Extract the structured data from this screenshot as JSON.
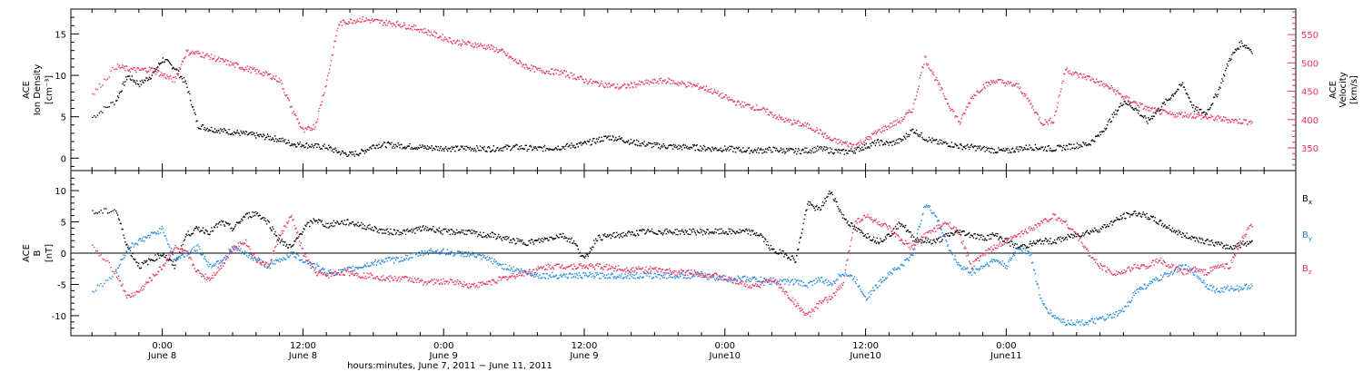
{
  "chart_data": [
    {
      "type": "scatter",
      "panel": "top",
      "ylabel_left": [
        "ACE",
        "Ion Density",
        "[cm⁻³]"
      ],
      "ylabel_right": [
        "ACE",
        "Velocity",
        "[km/s]"
      ],
      "left_axis": {
        "ylim": [
          -1.5,
          18
        ],
        "ticks": [
          0,
          5,
          10,
          15
        ]
      },
      "right_axis": {
        "ylim": [
          310,
          595
        ],
        "ticks": [
          350,
          400,
          450,
          500,
          550
        ]
      },
      "series": [
        {
          "key": "density",
          "axis": "left",
          "color": "#000000",
          "x": [
            -6,
            -4,
            -3,
            -2,
            -1,
            0,
            1,
            2,
            3,
            4,
            5,
            6,
            7,
            8,
            9,
            10,
            11,
            12,
            13,
            14,
            15,
            16,
            17,
            18,
            19,
            20,
            21,
            22,
            23,
            24,
            25,
            26,
            27,
            28,
            29,
            30,
            31,
            32,
            33,
            34,
            35,
            36,
            37,
            38,
            39,
            40,
            41,
            42,
            43,
            44,
            45,
            46,
            47,
            48,
            49,
            50,
            51,
            52,
            53,
            54,
            55,
            56,
            57,
            58,
            59,
            60,
            61,
            62,
            63,
            64,
            65,
            66,
            67,
            68,
            69,
            70,
            71,
            72,
            73,
            74,
            75,
            76,
            77,
            78,
            79,
            80,
            81,
            82,
            83,
            84,
            85,
            86,
            87,
            88,
            89,
            90,
            91,
            92,
            93
          ],
          "y": [
            5,
            7,
            10,
            9,
            10,
            12,
            11,
            9,
            4,
            3.6,
            3.4,
            3.2,
            3.0,
            2.8,
            2.6,
            2.3,
            1.8,
            1.7,
            1.5,
            1.4,
            0.8,
            0.5,
            0.8,
            1.6,
            1.7,
            1.6,
            1.5,
            1.4,
            1.3,
            1.3,
            1.2,
            1.3,
            1.2,
            1.2,
            1.3,
            1.4,
            1.3,
            1.2,
            1.3,
            1.4,
            1.6,
            1.8,
            2.2,
            2.6,
            2.4,
            2.0,
            1.8,
            1.6,
            1.5,
            1.4,
            1.4,
            1.3,
            1.2,
            1.2,
            1.1,
            1.0,
            1.0,
            1.1,
            1.0,
            0.9,
            1.0,
            1.2,
            1.0,
            0.8,
            1.0,
            1.5,
            2.0,
            1.8,
            2.2,
            3.5,
            2.5,
            2.0,
            1.8,
            1.5,
            1.4,
            1.2,
            1.0,
            0.9,
            1.2,
            1.4,
            1.3,
            1.2,
            1.4,
            1.6,
            1.8,
            3.0,
            5.0,
            7.0,
            6.0,
            4.5,
            6.0,
            7.5,
            9.0,
            6.0,
            5.5,
            8.0,
            12.0,
            14.0,
            13.0
          ]
        },
        {
          "key": "velocity",
          "axis": "right",
          "color": "#e8325c",
          "x": [
            -6,
            -4,
            -3,
            -2,
            -1,
            0,
            1,
            2,
            3,
            4,
            5,
            6,
            7,
            8,
            9,
            10,
            11,
            12,
            13,
            14,
            15,
            16,
            17,
            18,
            19,
            20,
            21,
            22,
            23,
            24,
            25,
            26,
            27,
            28,
            29,
            30,
            31,
            32,
            33,
            34,
            35,
            36,
            37,
            38,
            39,
            40,
            41,
            42,
            43,
            44,
            45,
            46,
            47,
            48,
            49,
            50,
            51,
            52,
            53,
            54,
            55,
            56,
            57,
            58,
            59,
            60,
            61,
            62,
            63,
            64,
            65,
            66,
            67,
            68,
            69,
            70,
            71,
            72,
            73,
            74,
            75,
            76,
            77,
            78,
            79,
            80,
            81,
            82,
            83,
            84,
            85,
            86,
            87,
            88,
            89,
            90,
            91,
            92,
            93
          ],
          "y": [
            445,
            495,
            490,
            488,
            490,
            480,
            470,
            520,
            518,
            512,
            505,
            498,
            492,
            486,
            480,
            470,
            420,
            380,
            390,
            470,
            570,
            575,
            578,
            575,
            572,
            570,
            565,
            560,
            552,
            545,
            538,
            535,
            532,
            528,
            520,
            505,
            495,
            488,
            486,
            484,
            478,
            470,
            465,
            462,
            458,
            462,
            465,
            468,
            470,
            465,
            462,
            458,
            450,
            440,
            430,
            425,
            420,
            410,
            400,
            395,
            390,
            380,
            365,
            360,
            355,
            365,
            380,
            390,
            400,
            420,
            510,
            470,
            430,
            395,
            440,
            460,
            470,
            465,
            460,
            430,
            395,
            400,
            490,
            480,
            475,
            465,
            455,
            440,
            430,
            420,
            415,
            410,
            410,
            408,
            405,
            403,
            400,
            398,
            397
          ]
        }
      ]
    },
    {
      "type": "scatter",
      "panel": "bottom",
      "ylabel": [
        "ACE",
        "B",
        "[nT]"
      ],
      "ylim": [
        -13.2,
        13.2
      ],
      "yticks": [
        -10,
        -5,
        0,
        5,
        10
      ],
      "zero_line": true,
      "series": [
        {
          "key": "bx",
          "name": "Bx",
          "color": "#000000",
          "x": [
            -6,
            -4,
            -3,
            -2,
            -1,
            0,
            1,
            2,
            3,
            4,
            5,
            6,
            7,
            8,
            9,
            10,
            11,
            12,
            13,
            14,
            15,
            16,
            17,
            18,
            19,
            20,
            21,
            22,
            23,
            24,
            25,
            26,
            27,
            28,
            29,
            30,
            31,
            32,
            33,
            34,
            35,
            36,
            37,
            38,
            39,
            40,
            41,
            42,
            43,
            44,
            45,
            46,
            47,
            48,
            49,
            50,
            51,
            52,
            53,
            54,
            55,
            56,
            57,
            58,
            59,
            60,
            61,
            62,
            63,
            64,
            65,
            66,
            67,
            68,
            69,
            70,
            71,
            72,
            73,
            74,
            75,
            76,
            77,
            78,
            79,
            80,
            81,
            82,
            83,
            84,
            85,
            86,
            87,
            88,
            89,
            90,
            91,
            92,
            93
          ],
          "y": [
            6.5,
            7,
            1,
            -2,
            -1,
            0,
            -2,
            3,
            4,
            3.5,
            5,
            4,
            6,
            6.5,
            5,
            2,
            1,
            4,
            5.5,
            4.5,
            5,
            5,
            4.5,
            4,
            3.5,
            3.5,
            3.5,
            4,
            4,
            3.5,
            3.5,
            3.5,
            3,
            3,
            2.5,
            2,
            1.8,
            2,
            2.5,
            3,
            2,
            -1,
            2.5,
            2.8,
            3,
            3.2,
            3.5,
            3.5,
            3.5,
            3.5,
            3.5,
            3.5,
            3.5,
            3.5,
            3.5,
            3.5,
            3,
            0.5,
            0,
            -1,
            8,
            7,
            10,
            6,
            4,
            3,
            2,
            3,
            5,
            2.5,
            2,
            2,
            3,
            3.5,
            3,
            2.5,
            3,
            2,
            1,
            1.5,
            2,
            2,
            2.5,
            3,
            3.5,
            4,
            5,
            6,
            6.5,
            6,
            5,
            4,
            3,
            2.5,
            2,
            1.5,
            1,
            1.5,
            2
          ]
        },
        {
          "key": "by",
          "name": "By",
          "color": "#1e88e5",
          "x": [
            -6,
            -4,
            -3,
            -2,
            -1,
            0,
            1,
            2,
            3,
            4,
            5,
            6,
            7,
            8,
            9,
            10,
            11,
            12,
            13,
            14,
            15,
            16,
            17,
            18,
            19,
            20,
            21,
            22,
            23,
            24,
            25,
            26,
            27,
            28,
            29,
            30,
            31,
            32,
            33,
            34,
            35,
            36,
            37,
            38,
            39,
            40,
            41,
            42,
            43,
            44,
            45,
            46,
            47,
            48,
            49,
            50,
            51,
            52,
            53,
            54,
            55,
            56,
            57,
            58,
            59,
            60,
            61,
            62,
            63,
            64,
            65,
            66,
            67,
            68,
            69,
            70,
            71,
            72,
            73,
            74,
            75,
            76,
            77,
            78,
            79,
            80,
            81,
            82,
            83,
            84,
            85,
            86,
            87,
            88,
            89,
            90,
            91,
            92,
            93
          ],
          "y": [
            -6,
            -3,
            1,
            2,
            3,
            4,
            -1,
            0,
            1,
            -2,
            -1,
            1,
            0,
            -1,
            -2,
            -1,
            0,
            -1,
            -2,
            -3,
            -3,
            -2.5,
            -2,
            -1.5,
            -1,
            -1,
            -0.5,
            0,
            0.5,
            0.3,
            0,
            0,
            -0.5,
            -1,
            -2,
            -2.5,
            -3,
            -3.5,
            -3.5,
            -3.5,
            -3.5,
            -3.5,
            -3.5,
            -3.5,
            -3.5,
            -3.5,
            -3.5,
            -3.5,
            -3.5,
            -3.5,
            -3.5,
            -3.5,
            -3.8,
            -4,
            -4,
            -4,
            -4.2,
            -4.5,
            -4.5,
            -4.5,
            -5,
            -4,
            -5,
            -3,
            -4,
            -7,
            -5,
            -3,
            -2,
            0,
            8,
            6,
            1,
            -2,
            -3,
            -2,
            -1,
            -2,
            1,
            0,
            -8,
            -10,
            -11,
            -11,
            -11,
            -10.5,
            -10,
            -9,
            -6,
            -5,
            -4,
            -3,
            -2,
            -3,
            -5,
            -6,
            -5.5,
            -5.5,
            -5
          ]
        },
        {
          "key": "bz",
          "name": "Bz",
          "color": "#e8325c",
          "x": [
            -6,
            -4,
            -3,
            -2,
            -1,
            0,
            1,
            2,
            3,
            4,
            5,
            6,
            7,
            8,
            9,
            10,
            11,
            12,
            13,
            14,
            15,
            16,
            17,
            18,
            19,
            20,
            21,
            22,
            23,
            24,
            25,
            26,
            27,
            28,
            29,
            30,
            31,
            32,
            33,
            34,
            35,
            36,
            37,
            38,
            39,
            40,
            41,
            42,
            43,
            44,
            45,
            46,
            47,
            48,
            49,
            50,
            51,
            52,
            53,
            54,
            55,
            56,
            57,
            58,
            59,
            60,
            61,
            62,
            63,
            64,
            65,
            66,
            67,
            68,
            69,
            70,
            71,
            72,
            73,
            74,
            75,
            76,
            77,
            78,
            79,
            80,
            81,
            82,
            83,
            84,
            85,
            86,
            87,
            88,
            89,
            90,
            91,
            92,
            93
          ],
          "y": [
            1,
            -3,
            -7,
            -6,
            -4,
            -2,
            1,
            0,
            -3,
            -4,
            -2,
            1,
            2,
            -1,
            -2,
            3,
            6,
            0,
            -3,
            -3.5,
            -3,
            -3,
            -3.5,
            -3.5,
            -4,
            -4,
            -4,
            -4.5,
            -4.5,
            -4.5,
            -4.5,
            -5,
            -5,
            -4.5,
            -4,
            -3.5,
            -3,
            -2.5,
            -2,
            -2,
            -2,
            -2,
            -2,
            -2.2,
            -2.4,
            -2.5,
            -2.5,
            -2.6,
            -2.8,
            -3,
            -3,
            -3.2,
            -3.5,
            -4,
            -4.5,
            -5,
            -5,
            -4,
            -6,
            -8,
            -10,
            -8,
            -7,
            -5,
            5,
            6,
            5,
            4,
            2,
            1,
            3,
            4,
            5,
            3,
            -2,
            0,
            1,
            2,
            3,
            4,
            5,
            6,
            5,
            3,
            0,
            -2,
            -3,
            -3,
            -2,
            -2,
            -1,
            -2,
            -3,
            -2.5,
            -3,
            -2,
            -2,
            2,
            5
          ]
        }
      ],
      "legend": {
        "placement": "right",
        "labels": [
          [
            "B",
            "x"
          ],
          [
            "B",
            "y"
          ],
          [
            "B",
            "z"
          ]
        ]
      }
    }
  ],
  "x_axis": {
    "unit": "hours",
    "range": [
      -7.8,
      96.7
    ],
    "ticks": [
      {
        "x": 0,
        "time": "0:00",
        "date": "June 8"
      },
      {
        "x": 12,
        "time": "12:00",
        "date": "June 8"
      },
      {
        "x": 24,
        "time": "0:00",
        "date": "June 9"
      },
      {
        "x": 36,
        "time": "12:00",
        "date": "June 9"
      },
      {
        "x": 48,
        "time": "0:00",
        "date": "June10"
      },
      {
        "x": 60,
        "time": "12:00",
        "date": "June10"
      },
      {
        "x": 72,
        "time": "0:00",
        "date": "June11"
      }
    ],
    "title": "hours:minutes,  June  7, 2011 − June 11, 2011"
  }
}
